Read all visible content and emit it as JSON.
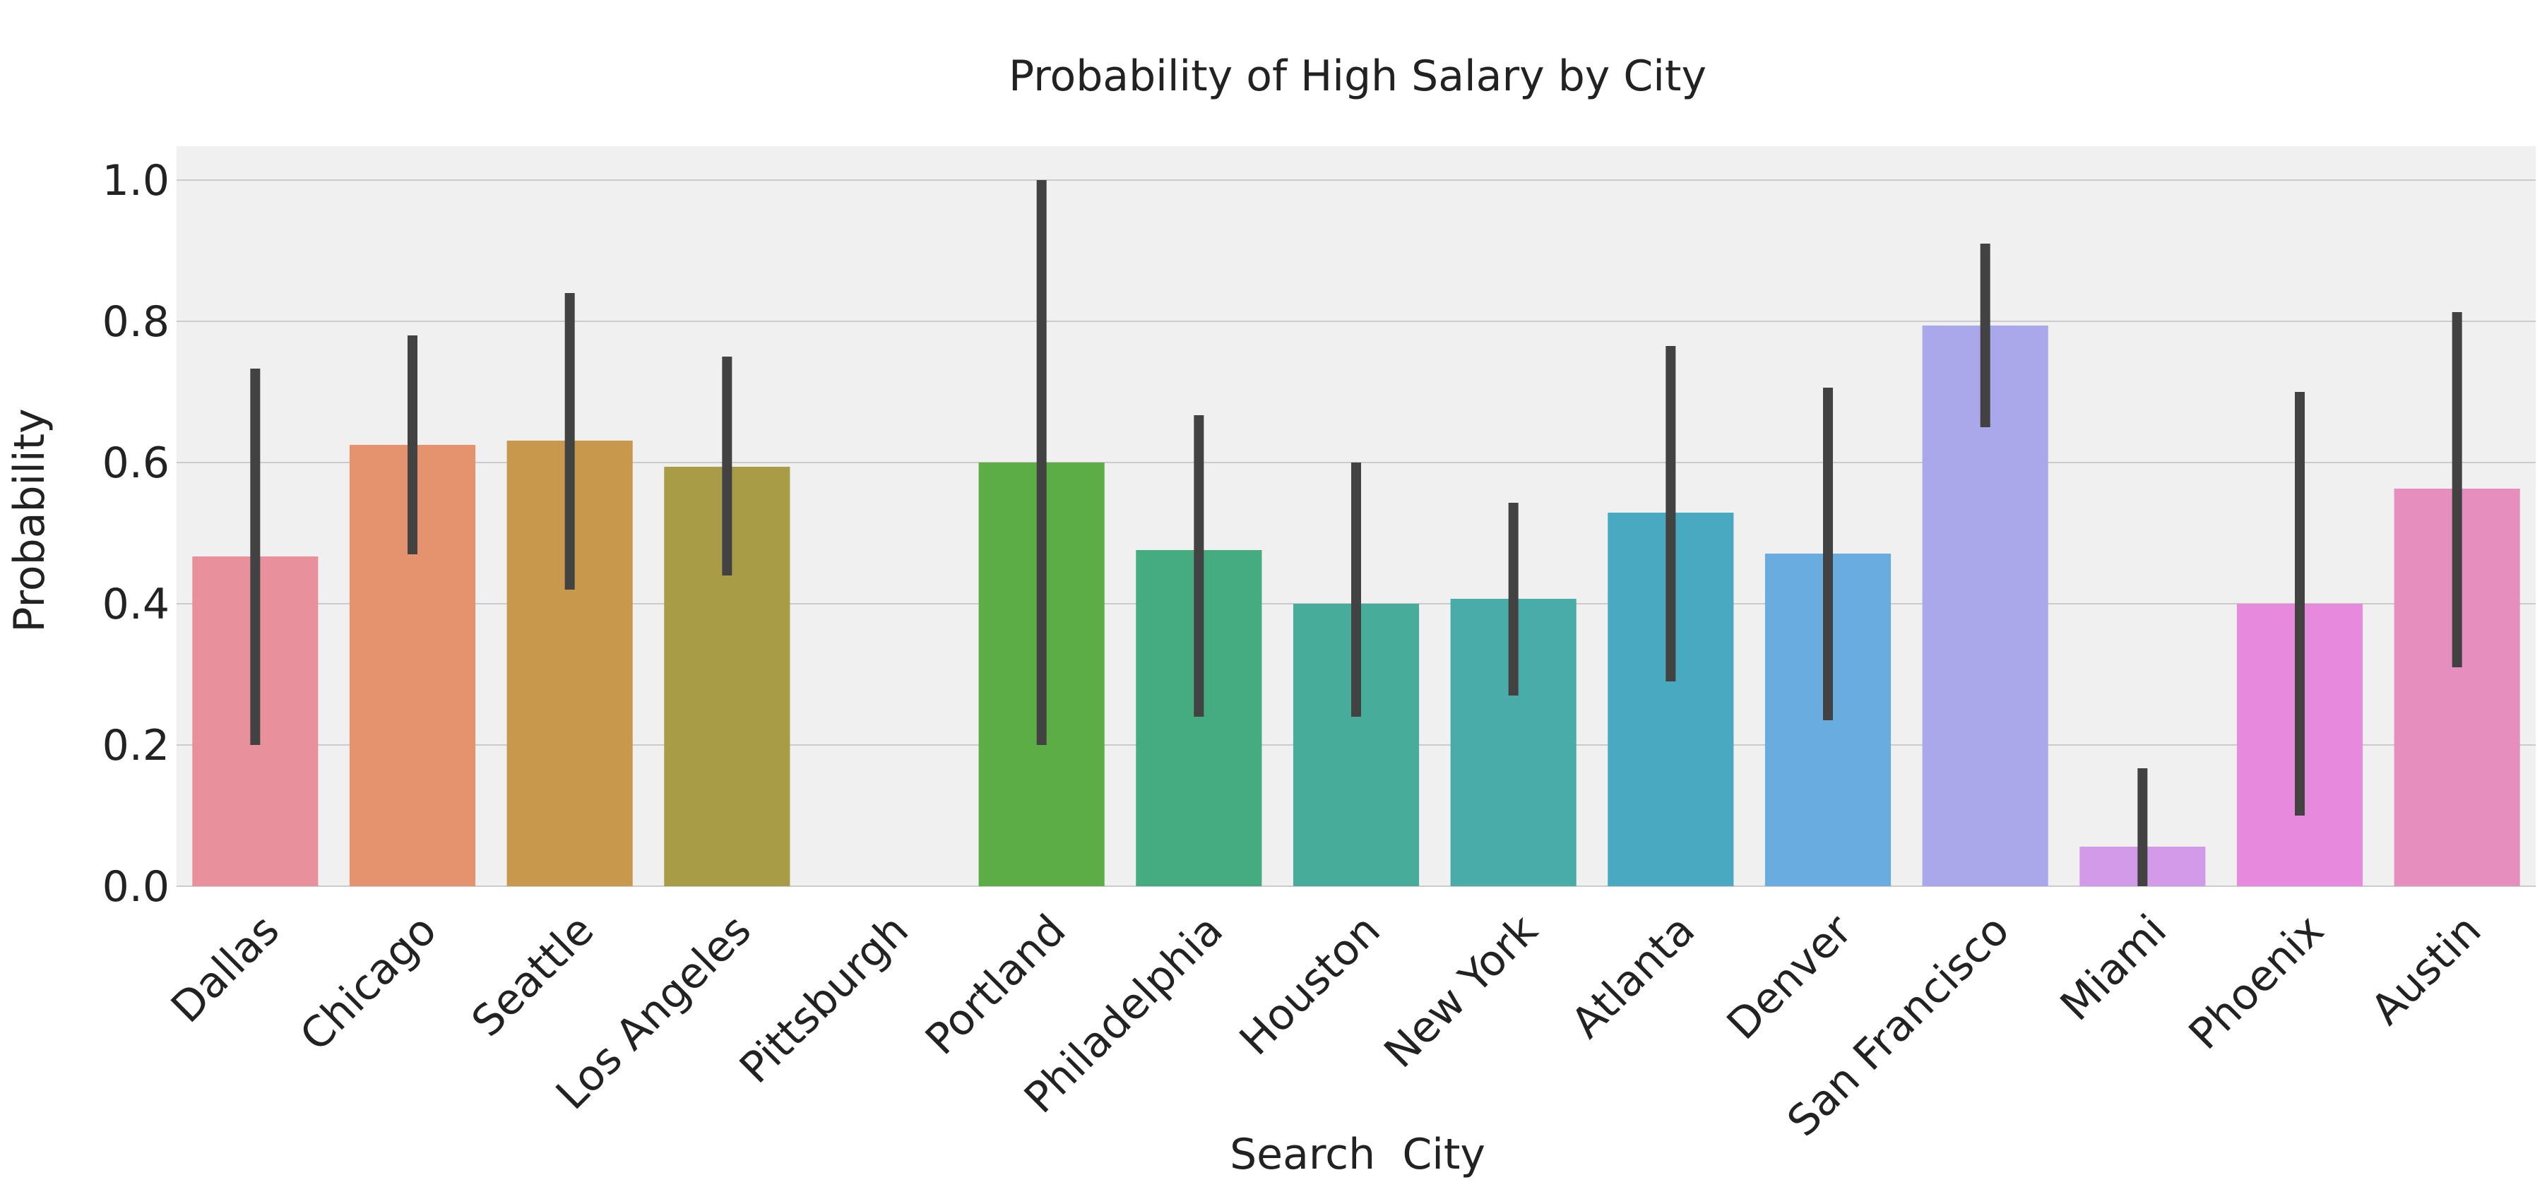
{
  "chart_data": {
    "type": "bar",
    "title": "Probability of High Salary by City",
    "xlabel": "Search  City",
    "ylabel": "Probability",
    "ylim": [
      0,
      1.05
    ],
    "yticks": [
      0.0,
      0.2,
      0.4,
      0.6,
      0.8,
      1.0
    ],
    "ytick_labels": [
      "0.0",
      "0.2",
      "0.4",
      "0.6",
      "0.8",
      "1.0"
    ],
    "grid": "horizontal",
    "background": "#f0f0f0",
    "error_bar_color": "#424242",
    "categories": [
      "Dallas",
      "Chicago",
      "Seattle",
      "Los Angeles",
      "Pittsburgh",
      "Portland",
      "Philadelphia",
      "Houston",
      "New York",
      "Atlanta",
      "Denver",
      "San Francisco",
      "Miami",
      "Phoenix",
      "Austin"
    ],
    "values": [
      0.467,
      0.625,
      0.631,
      0.594,
      0.0,
      0.6,
      0.476,
      0.4,
      0.407,
      0.529,
      0.471,
      0.794,
      0.056,
      0.4,
      0.563
    ],
    "error_low": [
      0.2,
      0.47,
      0.42,
      0.44,
      null,
      0.2,
      0.24,
      0.24,
      0.27,
      0.29,
      0.235,
      0.65,
      0.0,
      0.1,
      0.31
    ],
    "error_high": [
      0.733,
      0.78,
      0.84,
      0.75,
      null,
      1.0,
      0.667,
      0.6,
      0.543,
      0.765,
      0.706,
      0.91,
      0.167,
      0.7,
      0.813
    ],
    "colors": [
      "#e8919c",
      "#e5936f",
      "#c8994d",
      "#a99c47",
      "#8ea644",
      "#5dad46",
      "#45ab81",
      "#47ac9a",
      "#49aca9",
      "#48a9c0",
      "#69ade0",
      "#aaa8ea",
      "#d29ae9",
      "#e78ade",
      "#e68ebd"
    ]
  }
}
